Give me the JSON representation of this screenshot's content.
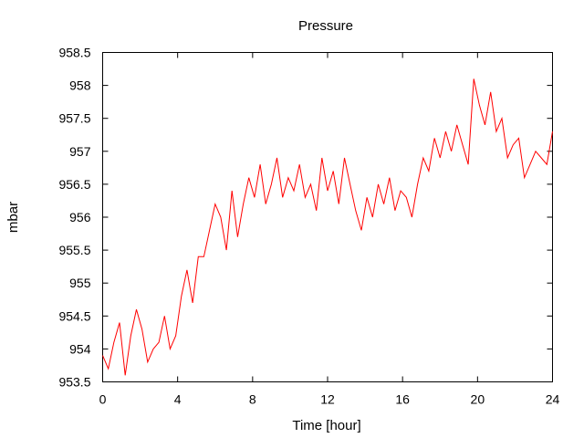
{
  "chart_data": {
    "type": "line",
    "title": "Pressure",
    "xlabel": "Time [hour]",
    "ylabel": "mbar",
    "xlim": [
      0,
      24
    ],
    "ylim": [
      953.5,
      958.5
    ],
    "xticks": [
      0,
      4,
      8,
      12,
      16,
      20,
      24
    ],
    "yticks": [
      953.5,
      954,
      954.5,
      955,
      955.5,
      956,
      956.5,
      957,
      957.5,
      958,
      958.5
    ],
    "ytick_labels": [
      "953.5",
      "954",
      "954.5",
      "955",
      "955.5",
      "956",
      "956.5",
      "957",
      "957.5",
      "958",
      "958.5"
    ],
    "grid": false,
    "line_color": "#ff0000",
    "series": [
      {
        "x": [
          0.0,
          0.3,
          0.6,
          0.9,
          1.2,
          1.5,
          1.8,
          2.1,
          2.4,
          2.7,
          3.0,
          3.3,
          3.6,
          3.9,
          4.2,
          4.5,
          4.8,
          5.1,
          5.4,
          5.7,
          6.0,
          6.3,
          6.6,
          6.9,
          7.2,
          7.5,
          7.8,
          8.1,
          8.4,
          8.7,
          9.0,
          9.3,
          9.6,
          9.9,
          10.2,
          10.5,
          10.8,
          11.1,
          11.4,
          11.7,
          12.0,
          12.3,
          12.6,
          12.9,
          13.2,
          13.5,
          13.8,
          14.1,
          14.4,
          14.7,
          15.0,
          15.3,
          15.6,
          15.9,
          16.2,
          16.5,
          16.8,
          17.1,
          17.4,
          17.7,
          18.0,
          18.3,
          18.6,
          18.9,
          19.2,
          19.5,
          19.8,
          20.1,
          20.4,
          20.7,
          21.0,
          21.3,
          21.6,
          21.9,
          22.2,
          22.5,
          22.8,
          23.1,
          23.4,
          23.7,
          24.0
        ],
        "y": [
          953.9,
          953.7,
          954.1,
          954.4,
          953.6,
          954.2,
          954.6,
          954.3,
          953.8,
          954.0,
          954.1,
          954.5,
          954.0,
          954.2,
          954.8,
          955.2,
          954.7,
          955.4,
          955.4,
          955.8,
          956.2,
          956.0,
          955.5,
          956.4,
          955.7,
          956.2,
          956.6,
          956.3,
          956.8,
          956.2,
          956.5,
          956.9,
          956.3,
          956.6,
          956.4,
          956.8,
          956.3,
          956.5,
          956.1,
          956.9,
          956.4,
          956.7,
          956.2,
          956.9,
          956.5,
          956.1,
          955.8,
          956.3,
          956.0,
          956.5,
          956.2,
          956.6,
          956.1,
          956.4,
          956.3,
          956.0,
          956.5,
          956.9,
          956.7,
          957.2,
          956.9,
          957.3,
          957.0,
          957.4,
          957.1,
          956.8,
          958.1,
          957.7,
          957.4,
          957.9,
          957.3,
          957.5,
          956.9,
          957.1,
          957.2,
          956.6,
          956.8,
          957.0,
          956.9,
          956.8,
          957.3
        ]
      }
    ]
  }
}
